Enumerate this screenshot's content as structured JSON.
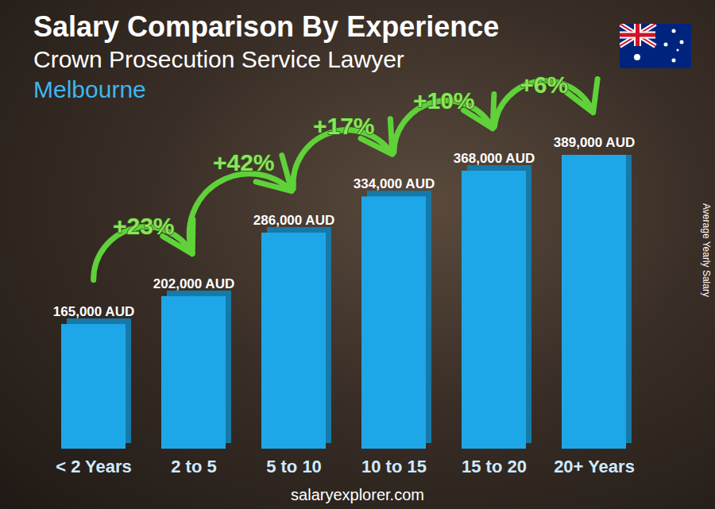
{
  "chart_data": {
    "type": "bar",
    "title": "Salary Comparison By Experience",
    "subtitle": "Crown Prosecution Service Lawyer",
    "location": "Melbourne",
    "y_label": "Average Yearly Salary",
    "source": "salaryexplorer.com",
    "categories": [
      "< 2 Years",
      "2 to 5",
      "5 to 10",
      "10 to 15",
      "15 to 20",
      "20+ Years"
    ],
    "values": [
      165000,
      202000,
      286000,
      334000,
      368000,
      389000
    ],
    "value_labels": [
      "165,000 AUD",
      "202,000 AUD",
      "286,000 AUD",
      "334,000 AUD",
      "368,000 AUD",
      "389,000 AUD"
    ],
    "annotations": [
      "+23%",
      "+42%",
      "+17%",
      "+10%",
      "+6%"
    ],
    "color": "#1ea7e8",
    "ylim": [
      0,
      389000
    ],
    "yticks": [],
    "grid": false,
    "data_labels": true,
    "tick_labels": "x"
  }
}
